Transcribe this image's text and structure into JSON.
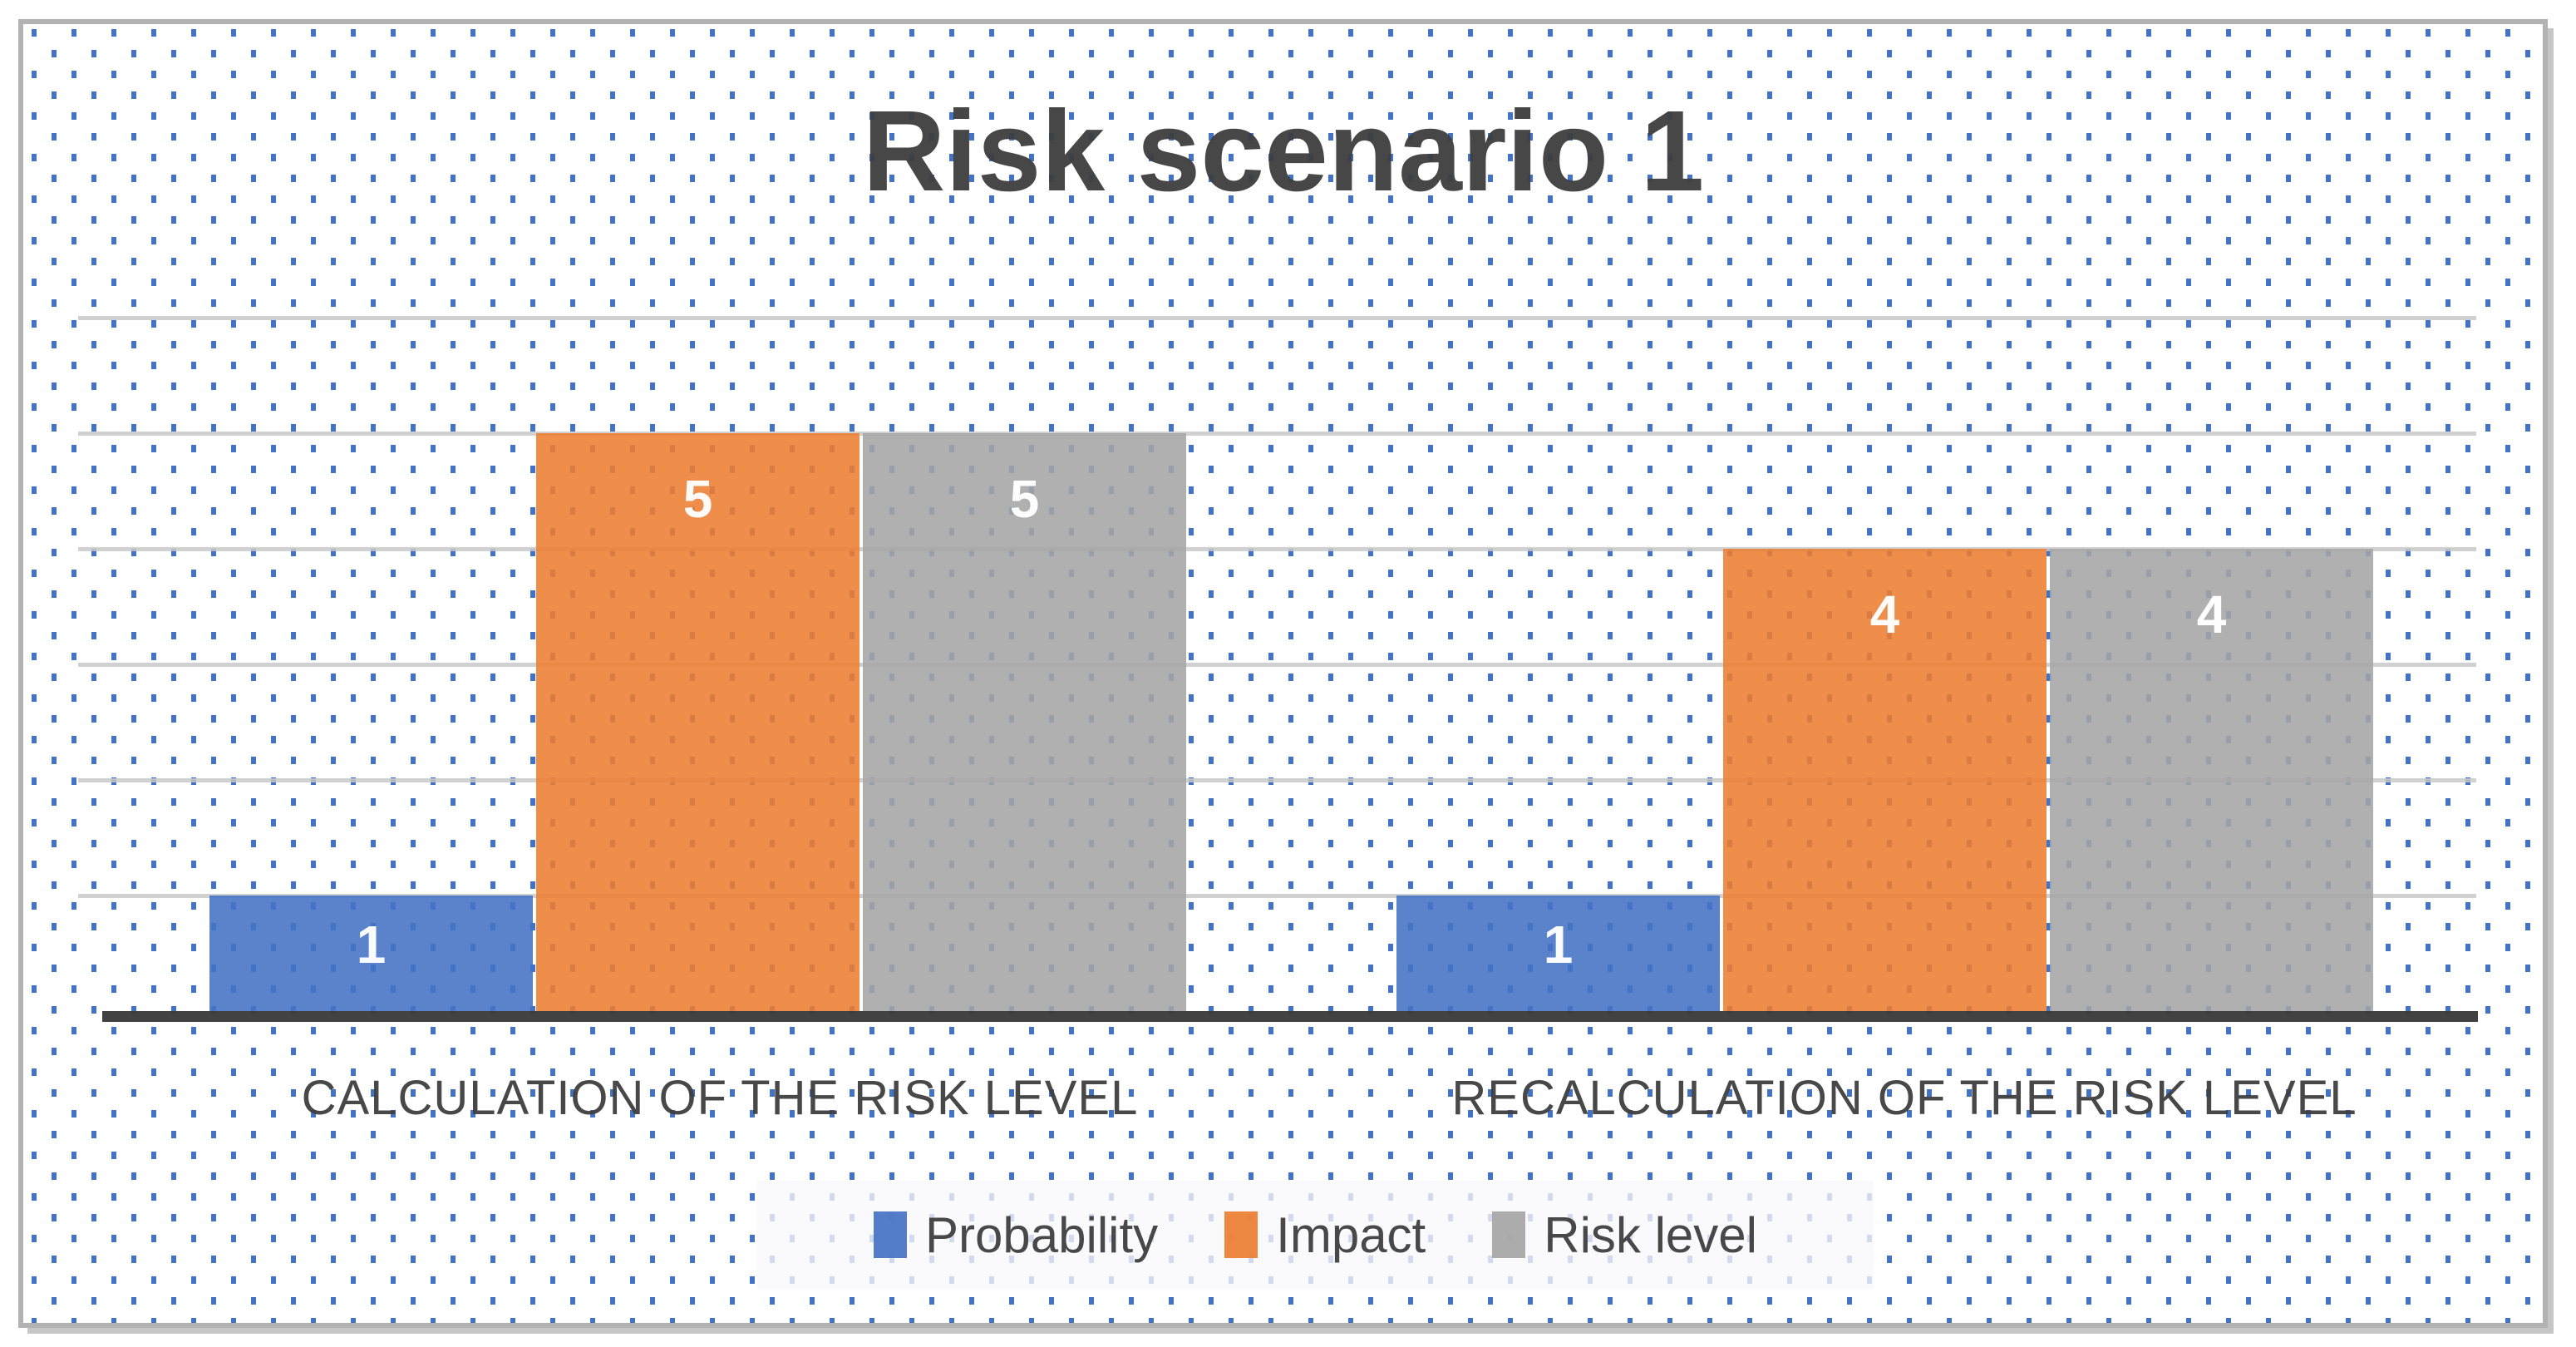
{
  "title": "Risk scenario 1",
  "chart_data": {
    "type": "bar",
    "title": "Risk scenario 1",
    "categories": [
      "CALCULATION OF THE RISK LEVEL",
      "RECALCULATION OF THE RISK LEVEL"
    ],
    "series": [
      {
        "name": "Probability",
        "color": "#4472C4",
        "values": [
          1,
          1
        ]
      },
      {
        "name": "Impact",
        "color": "#ED7D31",
        "values": [
          5,
          4
        ]
      },
      {
        "name": "Risk level",
        "color": "#A5A5A5",
        "values": [
          5,
          4
        ]
      }
    ],
    "ylim": [
      0,
      6
    ],
    "y_major_unit": 1,
    "y_axis_tick_labels_visible": false,
    "grid": "horizontal gridlines only",
    "data_labels": {
      "position": "inside-end",
      "color": "#FFFFFF"
    },
    "legend_position": "bottom"
  },
  "style": {
    "dot_pattern_color": "#4472C4",
    "gridline_color": "#C9C9C9",
    "axis_line_color": "#383838",
    "text_color": "#3E3E3E",
    "figure_border_color": "#B2B2B2",
    "background_color": "#FFFFFF"
  }
}
